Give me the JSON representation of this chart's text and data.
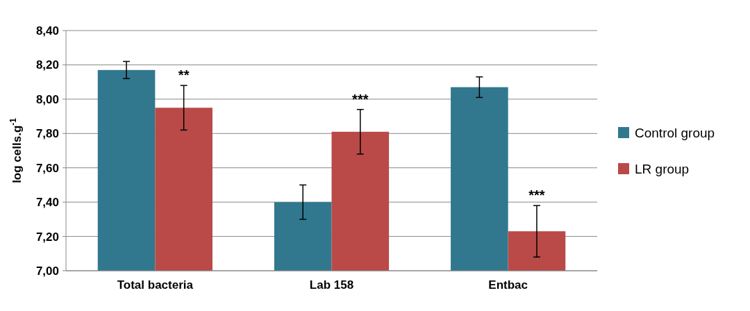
{
  "chart_data": {
    "type": "bar",
    "ylabel": "log cells.g$^{-1}$",
    "categories": [
      "Total bacteria",
      "Lab 158",
      "Entbac"
    ],
    "series": [
      {
        "name": "Control group",
        "color": "#31788f",
        "values": [
          8.17,
          7.4,
          8.07
        ],
        "errors": [
          0.05,
          0.1,
          0.06
        ]
      },
      {
        "name": "LR group",
        "color": "#b94a48",
        "values": [
          7.95,
          7.81,
          7.23
        ],
        "errors": [
          0.13,
          0.13,
          0.15
        ]
      }
    ],
    "ylim": [
      7,
      8.4
    ],
    "yticks": [
      {
        "value": 7,
        "label": "7,00"
      },
      {
        "value": 7.2,
        "label": "7,20"
      },
      {
        "value": 7.4,
        "label": "7,40"
      },
      {
        "value": 7.6,
        "label": "7,60"
      },
      {
        "value": 7.8,
        "label": "7,80"
      },
      {
        "value": 8,
        "label": "8,00"
      },
      {
        "value": 8.2,
        "label": "8,20"
      },
      {
        "value": 8.4,
        "label": "8,40"
      }
    ],
    "grid": "y",
    "legend": "right",
    "annotations": [
      {
        "text": "**",
        "x": "Total bacteria",
        "y": 7.95
      },
      {
        "text": "***",
        "x": "Lab 158",
        "y": 7.81
      },
      {
        "text": "***",
        "x": "Entbac",
        "y": 7.23
      }
    ]
  }
}
